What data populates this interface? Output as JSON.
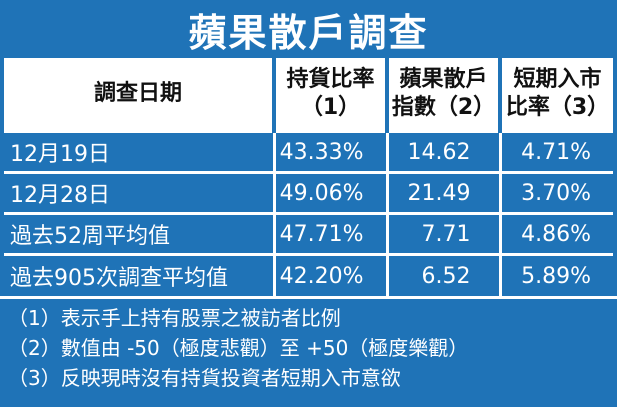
{
  "title": "蘋果散戶調查",
  "headers": {
    "date": "調查日期",
    "holding_ratio": [
      "持貨比率",
      "（1）"
    ],
    "apple_index": [
      "蘋果散戶",
      "指數（2）"
    ],
    "short_entry": [
      "短期入市",
      "比率（3）"
    ]
  },
  "rows": [
    {
      "label": "12月19日",
      "holding": "43.33%",
      "index": "14.62",
      "entry": "4.71%"
    },
    {
      "label": "12月28日",
      "holding": "49.06%",
      "index": "21.49",
      "entry": "3.70%"
    },
    {
      "label": "過去52周平均值",
      "holding": "47.71%",
      "index": "7.71",
      "entry": "4.86%"
    },
    {
      "label": "過去905次調查平均值",
      "holding": "42.20%",
      "index": "6.52",
      "entry": "5.89%"
    }
  ],
  "notes": [
    "（1）表示手上持有股票之被訪者比例",
    "（2）數值由 -50（極度悲觀）至 +50（極度樂觀）",
    "（3）反映現時沒有持貨投資者短期入市意欲"
  ],
  "colors": {
    "background": "#1f73b7",
    "header_bg": "#ffffff",
    "text": "#ffffff"
  }
}
